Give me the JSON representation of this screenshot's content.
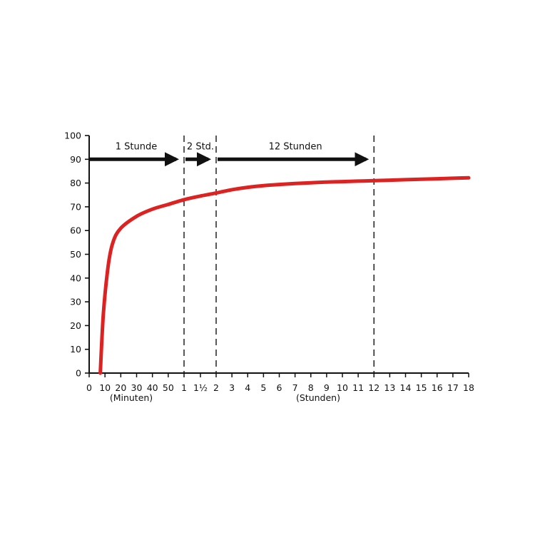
{
  "chart_data": {
    "type": "line",
    "title": "",
    "xlabel": "",
    "ylabel": "",
    "ylim": [
      0,
      100
    ],
    "y_ticks": [
      "0",
      "10",
      "20",
      "30",
      "40",
      "50",
      "60",
      "70",
      "80",
      "90",
      "100"
    ],
    "x_segments": [
      {
        "unit_label": "(Minuten)",
        "ticks": [
          "0",
          "10",
          "20",
          "30",
          "40",
          "50"
        ]
      },
      {
        "unit_label": "",
        "ticks": [
          "1",
          "1½"
        ]
      },
      {
        "unit_label": "(Stunden)",
        "ticks": [
          "2",
          "3",
          "4",
          "5",
          "6",
          "7",
          "8",
          "9",
          "10",
          "11",
          "12",
          "13",
          "14",
          "15",
          "16",
          "17",
          "18"
        ]
      }
    ],
    "intervals": [
      {
        "label": "1 Stunde",
        "from_hours": 0,
        "to_hours": 1
      },
      {
        "label": "2 Std.",
        "from_hours": 1,
        "to_hours": 2
      },
      {
        "label": "12 Stunden",
        "from_hours": 2,
        "to_hours": 12
      }
    ],
    "reference_lines_hours": [
      1,
      2,
      12
    ],
    "series": [
      {
        "color": "#dd2222",
        "x_hours": [
          0.117,
          0.15,
          0.2,
          0.25,
          0.333,
          0.5,
          0.667,
          0.833,
          1,
          1.5,
          2,
          3,
          4,
          5,
          6,
          7,
          8,
          9,
          10,
          11,
          12,
          13,
          14,
          15,
          16,
          17,
          18
        ],
        "values": [
          0,
          25,
          45,
          55,
          61,
          66,
          69,
          71,
          73,
          74.5,
          75.8,
          77.2,
          78.2,
          78.9,
          79.4,
          79.8,
          80.1,
          80.4,
          80.6,
          80.8,
          81,
          81.2,
          81.4,
          81.6,
          81.8,
          82,
          82.2
        ]
      }
    ]
  }
}
